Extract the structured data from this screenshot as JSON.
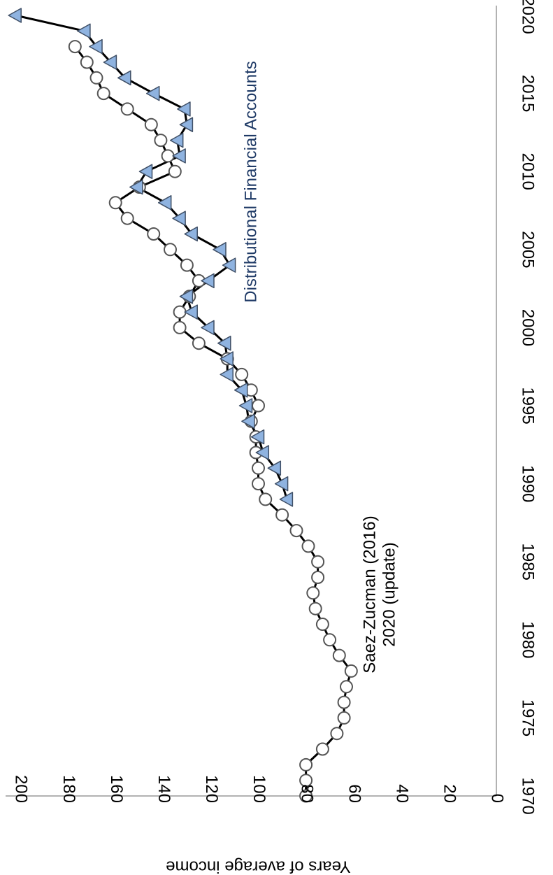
{
  "chart_data": {
    "type": "line",
    "orientation": "rotated-90-clockwise",
    "xlim": [
      1970,
      2020
    ],
    "ylim": [
      0,
      200
    ],
    "x_ticks": [
      "1970",
      "1975",
      "1980",
      "1985",
      "1990",
      "1995",
      "2000",
      "2005",
      "2010",
      "2015",
      "2020"
    ],
    "y_ticks": [
      "0",
      "20",
      "40",
      "60",
      "80",
      "100",
      "120",
      "140",
      "160",
      "180",
      "200"
    ],
    "ylabel": "Years of average income",
    "xlabel": "",
    "grid": false,
    "legend": "none",
    "annotations": [
      {
        "key": "saez",
        "lines": [
          "Saez-Zucman (2016)",
          "2020 (update)"
        ]
      },
      {
        "key": "dfa",
        "lines": [
          "Distributional Financial Accounts"
        ]
      }
    ],
    "colors": {
      "line": "#000000",
      "circle_fill": "#ffffff",
      "circle_stroke": "#555555",
      "triangle_fill": "#8fb3e0",
      "triangle_stroke": "#3f4f66",
      "dfa_text": "#1f3a66"
    },
    "series": [
      {
        "marker": "circle",
        "x": [
          1970,
          1971,
          1972,
          1973,
          1974,
          1975,
          1976,
          1977,
          1978,
          1979,
          1980,
          1981,
          1982,
          1983,
          1984,
          1985,
          1986,
          1987,
          1988,
          1989,
          1990,
          1991,
          1992,
          1993,
          1994,
          1995,
          1996,
          1997,
          1998,
          1999,
          2000,
          2001,
          2002,
          2003,
          2004,
          2005,
          2006,
          2007,
          2008,
          2009,
          2010,
          2011,
          2012,
          2013,
          2014,
          2015,
          2016,
          2017,
          2018
        ],
        "y": [
          80,
          80,
          80,
          73,
          67,
          64,
          64,
          63,
          61,
          66,
          70,
          73,
          76,
          77,
          75,
          75,
          79,
          84,
          90,
          97,
          100,
          100,
          101,
          101,
          103,
          100,
          103,
          107,
          113,
          125,
          133,
          133,
          129,
          125,
          130,
          137,
          144,
          155,
          160,
          150,
          135,
          138,
          141,
          145,
          155,
          165,
          168,
          172,
          177
        ]
      },
      {
        "marker": "triangle",
        "x": [
          1989,
          1990,
          1991,
          1992,
          1993,
          1994,
          1995,
          1996,
          1997,
          1998,
          1999,
          2000,
          2001,
          2002,
          2003,
          2004,
          2005,
          2006,
          2007,
          2008,
          2009,
          2010,
          2011,
          2012,
          2013,
          2014,
          2015,
          2016,
          2017,
          2018,
          2019,
          2020
        ],
        "y": [
          88,
          90,
          93,
          98,
          100,
          104,
          105,
          107,
          113,
          113,
          114,
          121,
          128,
          130,
          121,
          112,
          116,
          128,
          133,
          139,
          151,
          147,
          133,
          134,
          130,
          131,
          144,
          156,
          162,
          168,
          173,
          202
        ]
      }
    ]
  }
}
